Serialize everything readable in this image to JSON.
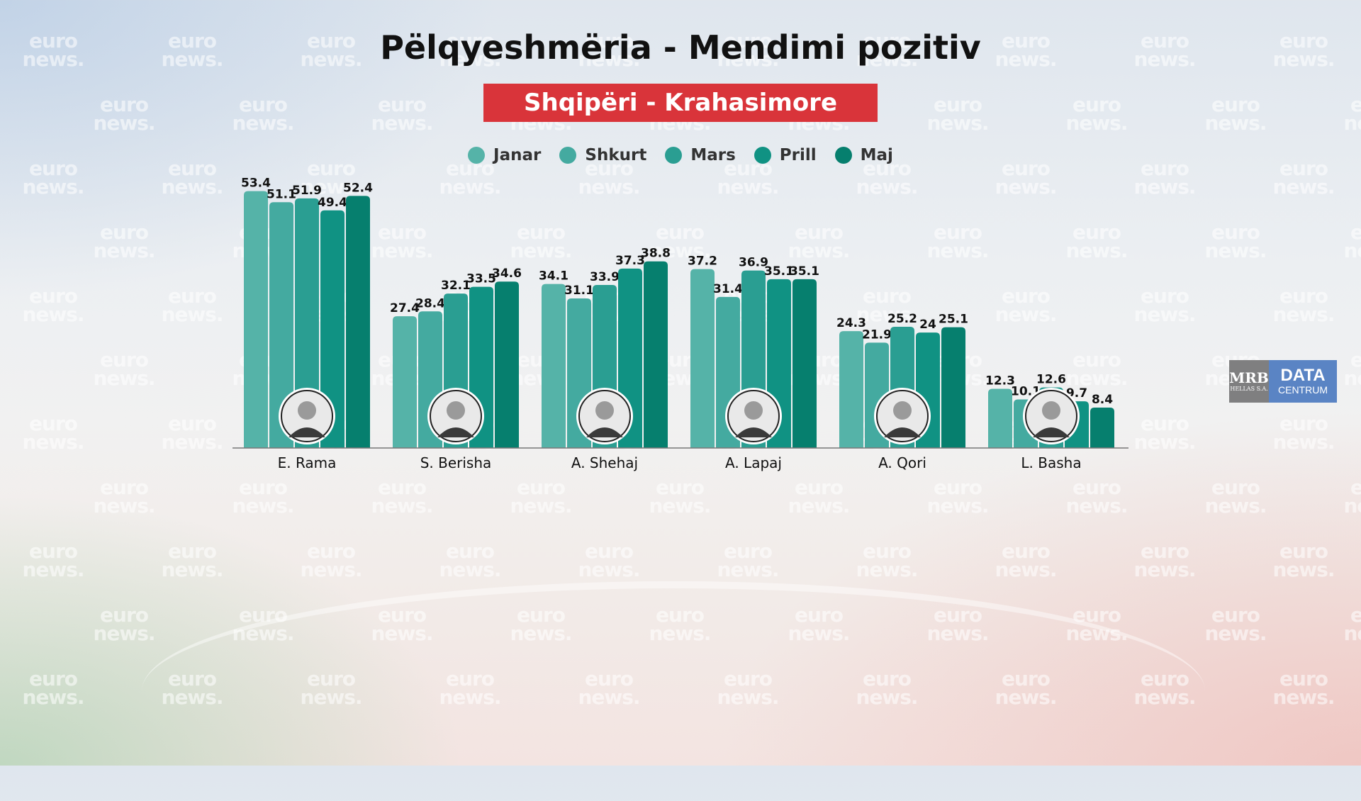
{
  "watermark": {
    "line1": "euro",
    "line2": "news."
  },
  "title": "Pëlqyeshmëria - Mendimi pozitiv",
  "subtitle": "Shqipëri - Krahasimore",
  "colors": {
    "accent_red": "#d9343a",
    "series": [
      "#55b3a8",
      "#44aaa0",
      "#2a9e92",
      "#109283",
      "#067f6e"
    ]
  },
  "logo": {
    "mrb": "MRB",
    "mrb_sub": "HELLAS S.A.",
    "data": "DATA",
    "data_sub": "CENTRUM"
  },
  "chart_data": {
    "type": "bar",
    "title": "Pëlqyeshmëria - Mendimi pozitiv",
    "subtitle": "Shqipëri - Krahasimore",
    "legend_position": "top-center",
    "grid": false,
    "categories": [
      "E. Rama",
      "S. Berisha",
      "A. Shehaj",
      "A. Lapaj",
      "A. Qori",
      "L. Basha"
    ],
    "category_icons": [
      "avatar-rama",
      "avatar-berisha",
      "avatar-shehaj",
      "avatar-lapaj",
      "avatar-qori",
      "avatar-basha"
    ],
    "series": [
      {
        "name": "Janar",
        "values": [
          53.4,
          27.4,
          34.1,
          37.2,
          24.3,
          12.3
        ]
      },
      {
        "name": "Shkurt",
        "values": [
          51.1,
          28.4,
          31.1,
          31.4,
          21.9,
          10.1
        ]
      },
      {
        "name": "Mars",
        "values": [
          51.9,
          32.1,
          33.9,
          36.9,
          25.2,
          12.6
        ]
      },
      {
        "name": "Prill",
        "values": [
          49.4,
          33.5,
          37.3,
          35.1,
          24,
          9.7
        ]
      },
      {
        "name": "Maj",
        "values": [
          52.4,
          34.6,
          38.8,
          35.1,
          25.1,
          8.4
        ]
      }
    ],
    "ylim": [
      0,
      56
    ]
  }
}
